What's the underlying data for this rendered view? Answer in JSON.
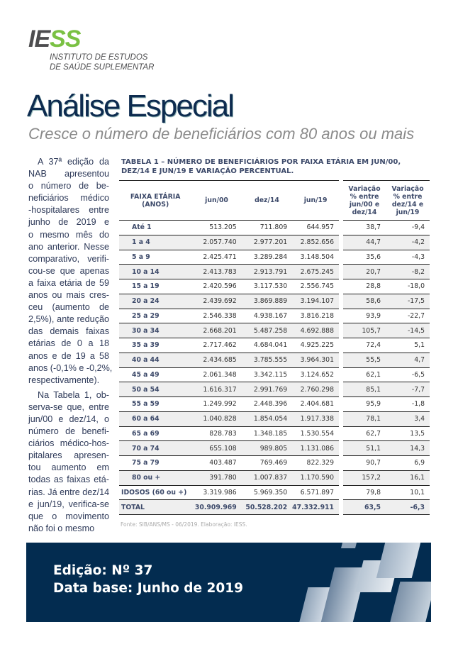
{
  "logo": {
    "part1": "IE",
    "part2": "SS",
    "line1": "INSTITUTO DE ESTUDOS",
    "line2": "DE SAÚDE SUPLEMENTAR"
  },
  "title": "Análise Especial",
  "subtitle": "Cresce o número de beneficiários com 80 anos ou mais",
  "body": {
    "p1": [
      "A 37ª edição da",
      "NAB apresentou",
      "o número de be-",
      "neficiários médico",
      "-hospitalares entre",
      "junho de 2019 e",
      "o mesmo mês do",
      "ano anterior. Nesse",
      "comparativo, verifi-",
      "cou-se que apenas",
      "a faixa etária de 59",
      "anos ou mais cres-",
      "ceu (aumento de",
      "2,5%), ante redução",
      "das demais faixas",
      "etárias de 0 a 18",
      "anos e de 19 a 58",
      "anos (-0,1% e -0,2%,",
      "respectivamente)."
    ],
    "p2": [
      "Na Tabela 1, ob-",
      "serva-se que, entre",
      "jun/00 e dez/14, o",
      "número de benefi-",
      "ciários médico-hos-",
      "pitalares apresen-",
      "tou aumento em",
      "todas as faixas etá-",
      "rias. Já entre dez/14",
      "e jun/19, verifica-se",
      "que o movimento",
      "não foi o mesmo"
    ]
  },
  "table": {
    "caption": "TABELA 1 – NÚMERO DE BENEFICIÁRIOS POR FAIXA ETÁRIA EM JUN/00, DEZ/14 E JUN/19 E VARIAÇÃO PERCENTUAL.",
    "headers": [
      "FAIXA ETÁRIA (ANOS)",
      "jun/00",
      "dez/14",
      "jun/19",
      "Variação % entre jun/00 e dez/14",
      "Variação % entre dez/14 e jun/19"
    ],
    "rows": [
      [
        "Até 1",
        "513.205",
        "711.809",
        "644.957",
        "38,7",
        "-9,4"
      ],
      [
        "1 a 4",
        "2.057.740",
        "2.977.201",
        "2.852.656",
        "44,7",
        "-4,2"
      ],
      [
        "5 a 9",
        "2.425.471",
        "3.289.284",
        "3.148.504",
        "35,6",
        "-4,3"
      ],
      [
        "10 a 14",
        "2.413.783",
        "2.913.791",
        "2.675.245",
        "20,7",
        "-8,2"
      ],
      [
        "15 a 19",
        "2.420.596",
        "3.117.530",
        "2.556.745",
        "28,8",
        "-18,0"
      ],
      [
        "20 a 24",
        "2.439.692",
        "3.869.889",
        "3.194.107",
        "58,6",
        "-17,5"
      ],
      [
        "25 a 29",
        "2.546.338",
        "4.938.167",
        "3.816.218",
        "93,9",
        "-22,7"
      ],
      [
        "30 a 34",
        "2.668.201",
        "5.487.258",
        "4.692.888",
        "105,7",
        "-14,5"
      ],
      [
        "35 a 39",
        "2.717.462",
        "4.684.041",
        "4.925.225",
        "72,4",
        "5,1"
      ],
      [
        "40 a 44",
        "2.434.685",
        "3.785.555",
        "3.964.301",
        "55,5",
        "4,7"
      ],
      [
        "45 a 49",
        "2.061.348",
        "3.342.115",
        "3.124.652",
        "62,1",
        "-6,5"
      ],
      [
        "50 a 54",
        "1.616.317",
        "2.991.769",
        "2.760.298",
        "85,1",
        "-7,7"
      ],
      [
        "55 a 59",
        "1.249.992",
        "2.448.396",
        "2.404.681",
        "95,9",
        "-1,8"
      ],
      [
        "60 a 64",
        "1.040.828",
        "1.854.054",
        "1.917.338",
        "78,1",
        "3,4"
      ],
      [
        "65 a 69",
        "828.783",
        "1.348.185",
        "1.530.554",
        "62,7",
        "13,5"
      ],
      [
        "70 a 74",
        "655.108",
        "989.805",
        "1.131.086",
        "51,1",
        "14,3"
      ],
      [
        "75 a 79",
        "403.487",
        "769.469",
        "822.329",
        "90,7",
        "6,9"
      ],
      [
        "80 ou +",
        "391.780",
        "1.007.837",
        "1.170.590",
        "157,2",
        "16,1"
      ],
      [
        "IDOSOS (60 ou +)",
        "3.319.986",
        "5.969.350",
        "6.571.897",
        "79,8",
        "10,1"
      ],
      [
        "TOTAL",
        "30.909.969",
        "50.528.202",
        "47.332.911",
        "63,5",
        "-6,3"
      ]
    ],
    "source": "Fonte: SIB/ANS/MS - 06/2019. Elaboração: IESS."
  },
  "footer": {
    "edition": "Edição: Nº 37",
    "base": "Data base: Junho de 2019"
  }
}
